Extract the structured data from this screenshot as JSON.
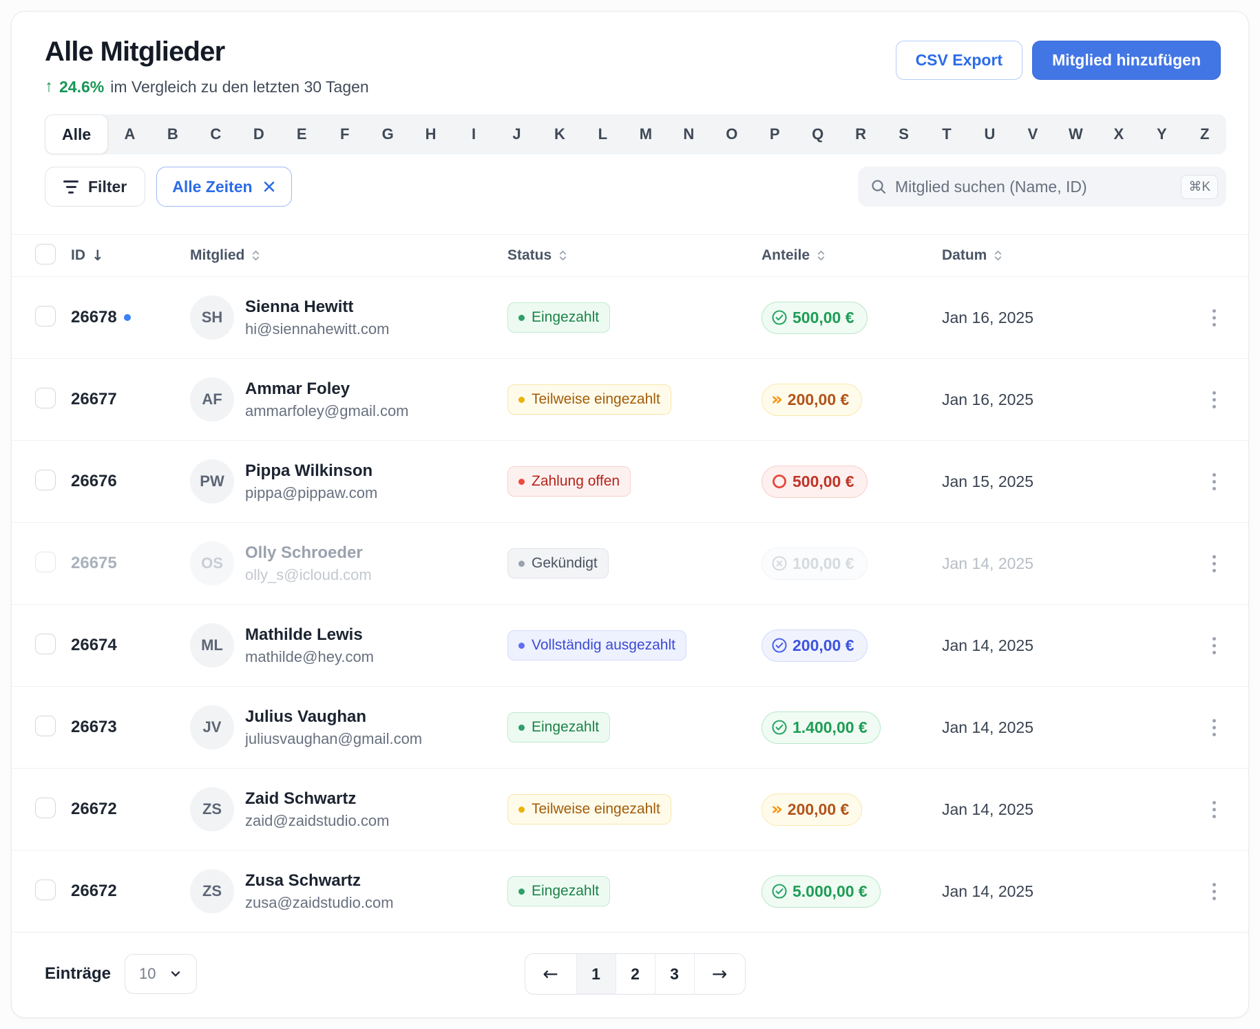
{
  "header": {
    "title": "Alle Mitglieder",
    "trend_arrow_icon": "arrow-up-icon",
    "trend_value": "24.6%",
    "trend_text": "im Vergleich zu den letzten 30 Tagen",
    "csv_button": "CSV Export",
    "add_button": "Mitglied hinzufügen"
  },
  "alphabet": {
    "all_label": "Alle",
    "letters": [
      "A",
      "B",
      "C",
      "D",
      "E",
      "F",
      "G",
      "H",
      "I",
      "J",
      "K",
      "L",
      "M",
      "N",
      "O",
      "P",
      "Q",
      "R",
      "S",
      "T",
      "U",
      "V",
      "W",
      "X",
      "Y",
      "Z"
    ]
  },
  "filters": {
    "filter_button": "Filter",
    "filter_icon": "filter-lines-icon",
    "time_chip": "Alle Zeiten",
    "time_chip_close_icon": "close-icon",
    "search_icon": "search-icon",
    "search_placeholder": "Mitglied suchen (Name, ID)",
    "shortcut": "⌘K"
  },
  "table": {
    "columns": {
      "id": "ID",
      "member": "Mitglied",
      "status": "Status",
      "shares": "Anteile",
      "date": "Datum"
    },
    "sort": {
      "id_direction": "desc"
    },
    "rows": [
      {
        "id": "26678",
        "unread": true,
        "muted": false,
        "initials": "SH",
        "name": "Sienna Hewitt",
        "email": "hi@siennahewitt.com",
        "status": {
          "label": "Eingezahlt",
          "variant": "green"
        },
        "amount": {
          "value": "500,00 €",
          "variant": "green",
          "icon": "check-circle-icon"
        },
        "date": "Jan 16, 2025"
      },
      {
        "id": "26677",
        "unread": false,
        "muted": false,
        "initials": "AF",
        "name": "Ammar Foley",
        "email": "ammarfoley@gmail.com",
        "status": {
          "label": "Teilweise eingezahlt",
          "variant": "yellow"
        },
        "amount": {
          "value": "200,00 €",
          "variant": "yellow",
          "icon": "chevrons-right-icon"
        },
        "date": "Jan 16, 2025"
      },
      {
        "id": "26676",
        "unread": false,
        "muted": false,
        "initials": "PW",
        "name": "Pippa Wilkinson",
        "email": "pippa@pippaw.com",
        "status": {
          "label": "Zahlung offen",
          "variant": "red"
        },
        "amount": {
          "value": "500,00 €",
          "variant": "red",
          "icon": "circle-icon"
        },
        "date": "Jan 15, 2025"
      },
      {
        "id": "26675",
        "unread": false,
        "muted": true,
        "initials": "OS",
        "name": "Olly Schroeder",
        "email": "olly_s@icloud.com",
        "status": {
          "label": "Gekündigt",
          "variant": "gray"
        },
        "amount": {
          "value": "100,00 €",
          "variant": "gray",
          "icon": "x-circle-icon"
        },
        "date": "Jan 14, 2025"
      },
      {
        "id": "26674",
        "unread": false,
        "muted": false,
        "initials": "ML",
        "name": "Mathilde Lewis",
        "email": "mathilde@hey.com",
        "status": {
          "label": "Vollständig ausgezahlt",
          "variant": "indigo"
        },
        "amount": {
          "value": "200,00 €",
          "variant": "indigo",
          "icon": "check-circle-icon"
        },
        "date": "Jan 14, 2025"
      },
      {
        "id": "26673",
        "unread": false,
        "muted": false,
        "initials": "JV",
        "name": "Julius Vaughan",
        "email": "juliusvaughan@gmail.com",
        "status": {
          "label": "Eingezahlt",
          "variant": "green"
        },
        "amount": {
          "value": "1.400,00 €",
          "variant": "green",
          "icon": "check-circle-icon"
        },
        "date": "Jan 14, 2025"
      },
      {
        "id": "26672",
        "unread": false,
        "muted": false,
        "initials": "ZS",
        "name": "Zaid Schwartz",
        "email": "zaid@zaidstudio.com",
        "status": {
          "label": "Teilweise eingezahlt",
          "variant": "yellow"
        },
        "amount": {
          "value": "200,00 €",
          "variant": "yellow",
          "icon": "chevrons-right-icon"
        },
        "date": "Jan 14, 2025"
      },
      {
        "id": "26672",
        "unread": false,
        "muted": false,
        "initials": "ZS",
        "name": "Zusa Schwartz",
        "email": "zusa@zaidstudio.com",
        "status": {
          "label": "Eingezahlt",
          "variant": "green"
        },
        "amount": {
          "value": "5.000,00 €",
          "variant": "green",
          "icon": "check-circle-icon"
        },
        "date": "Jan 14, 2025"
      }
    ]
  },
  "footer": {
    "entries_label": "Einträge",
    "page_size": "10",
    "pages": [
      "1",
      "2",
      "3"
    ],
    "active_page": "1",
    "prev_icon": "arrow-left-icon",
    "next_icon": "arrow-right-icon"
  },
  "colors": {
    "accent_blue": "#2b6be8",
    "primary_button_blue": "#4376e5",
    "positive_green": "#179555",
    "warning_yellow": "#b1541a",
    "danger_red": "#c13428",
    "indigo": "#3d55dd",
    "unread_dot_blue": "#3b82f6"
  }
}
